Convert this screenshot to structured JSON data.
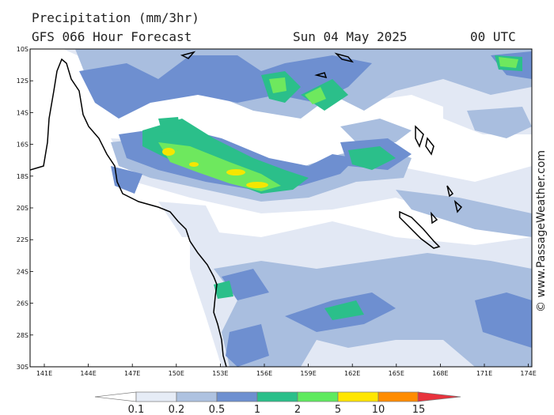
{
  "header": {
    "title": "Precipitation (mm/3hr)",
    "model": "GFS 066 Hour Forecast",
    "date": "Sun 04 May 2025",
    "time": "00 UTC"
  },
  "credit": "© www.PassageWeather.com",
  "map": {
    "lat_labels": [
      "10S",
      "12S",
      "14S",
      "16S",
      "18S",
      "20S",
      "22S",
      "24S",
      "26S",
      "28S",
      "30S"
    ],
    "lon_labels": [
      "141E",
      "144E",
      "147E",
      "150E",
      "153E",
      "156E",
      "159E",
      "162E",
      "165E",
      "168E",
      "171E",
      "174E"
    ]
  },
  "legend": {
    "labels": [
      "0.1",
      "0.2",
      "0.5",
      "1",
      "2",
      "5",
      "10",
      "15"
    ],
    "colors": [
      "#e6ecf6",
      "#aec2e0",
      "#6e90d0",
      "#2bbf8a",
      "#5fea5f",
      "#ffe600",
      "#ff8c00",
      "#e8323c"
    ]
  },
  "colors": {
    "light": "#e2e8f4",
    "medium": "#a9bedf",
    "blue": "#6e8fd0",
    "teal": "#2bbf8a",
    "green": "#6ee85e",
    "yellow": "#f5e600"
  }
}
